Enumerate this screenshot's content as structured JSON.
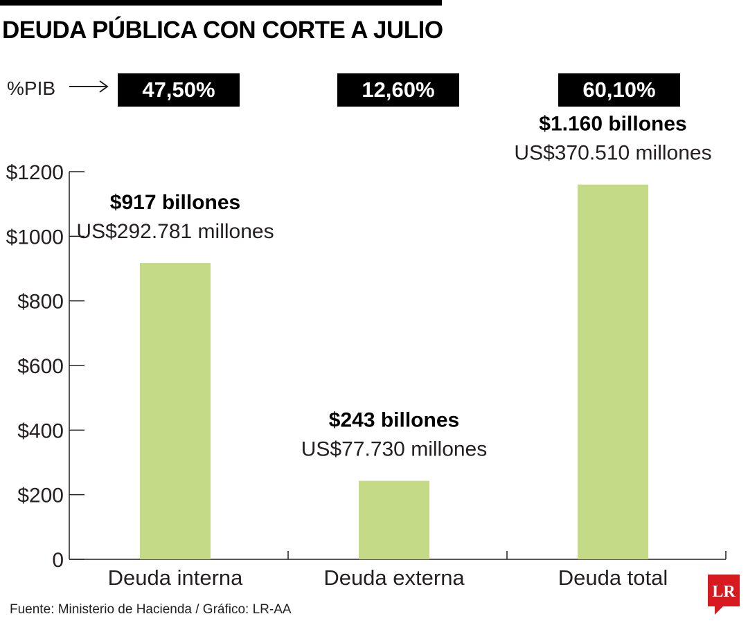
{
  "title": "DEUDA PÚBLICA CON CORTE A JULIO",
  "pib": {
    "label": "%PIB",
    "values": [
      "47,50%",
      "12,60%",
      "60,10%"
    ]
  },
  "chart_data": {
    "type": "bar",
    "categories": [
      "Deuda interna",
      "Deuda externa",
      "Deuda total"
    ],
    "values": [
      917,
      243,
      1160
    ],
    "ylim": [
      0,
      1200
    ],
    "yticks": [
      0,
      200,
      400,
      600,
      800,
      1000,
      1200
    ],
    "ytick_labels": [
      "0",
      "$200",
      "$400",
      "$600",
      "$800",
      "$1000",
      "$1200"
    ],
    "data_labels": [
      "$917 billones",
      "$243 billones",
      "$1.160 billones"
    ],
    "usd_labels": [
      "US$292.781 millones",
      "US$77.730 millones",
      "US$370.510 millones"
    ],
    "bar_color": "#c5da87",
    "grid": false
  },
  "source": "Fuente: Ministerio de Hacienda / Gráfico: LR-AA",
  "logo": {
    "text": "LR",
    "color": "#d71920"
  }
}
